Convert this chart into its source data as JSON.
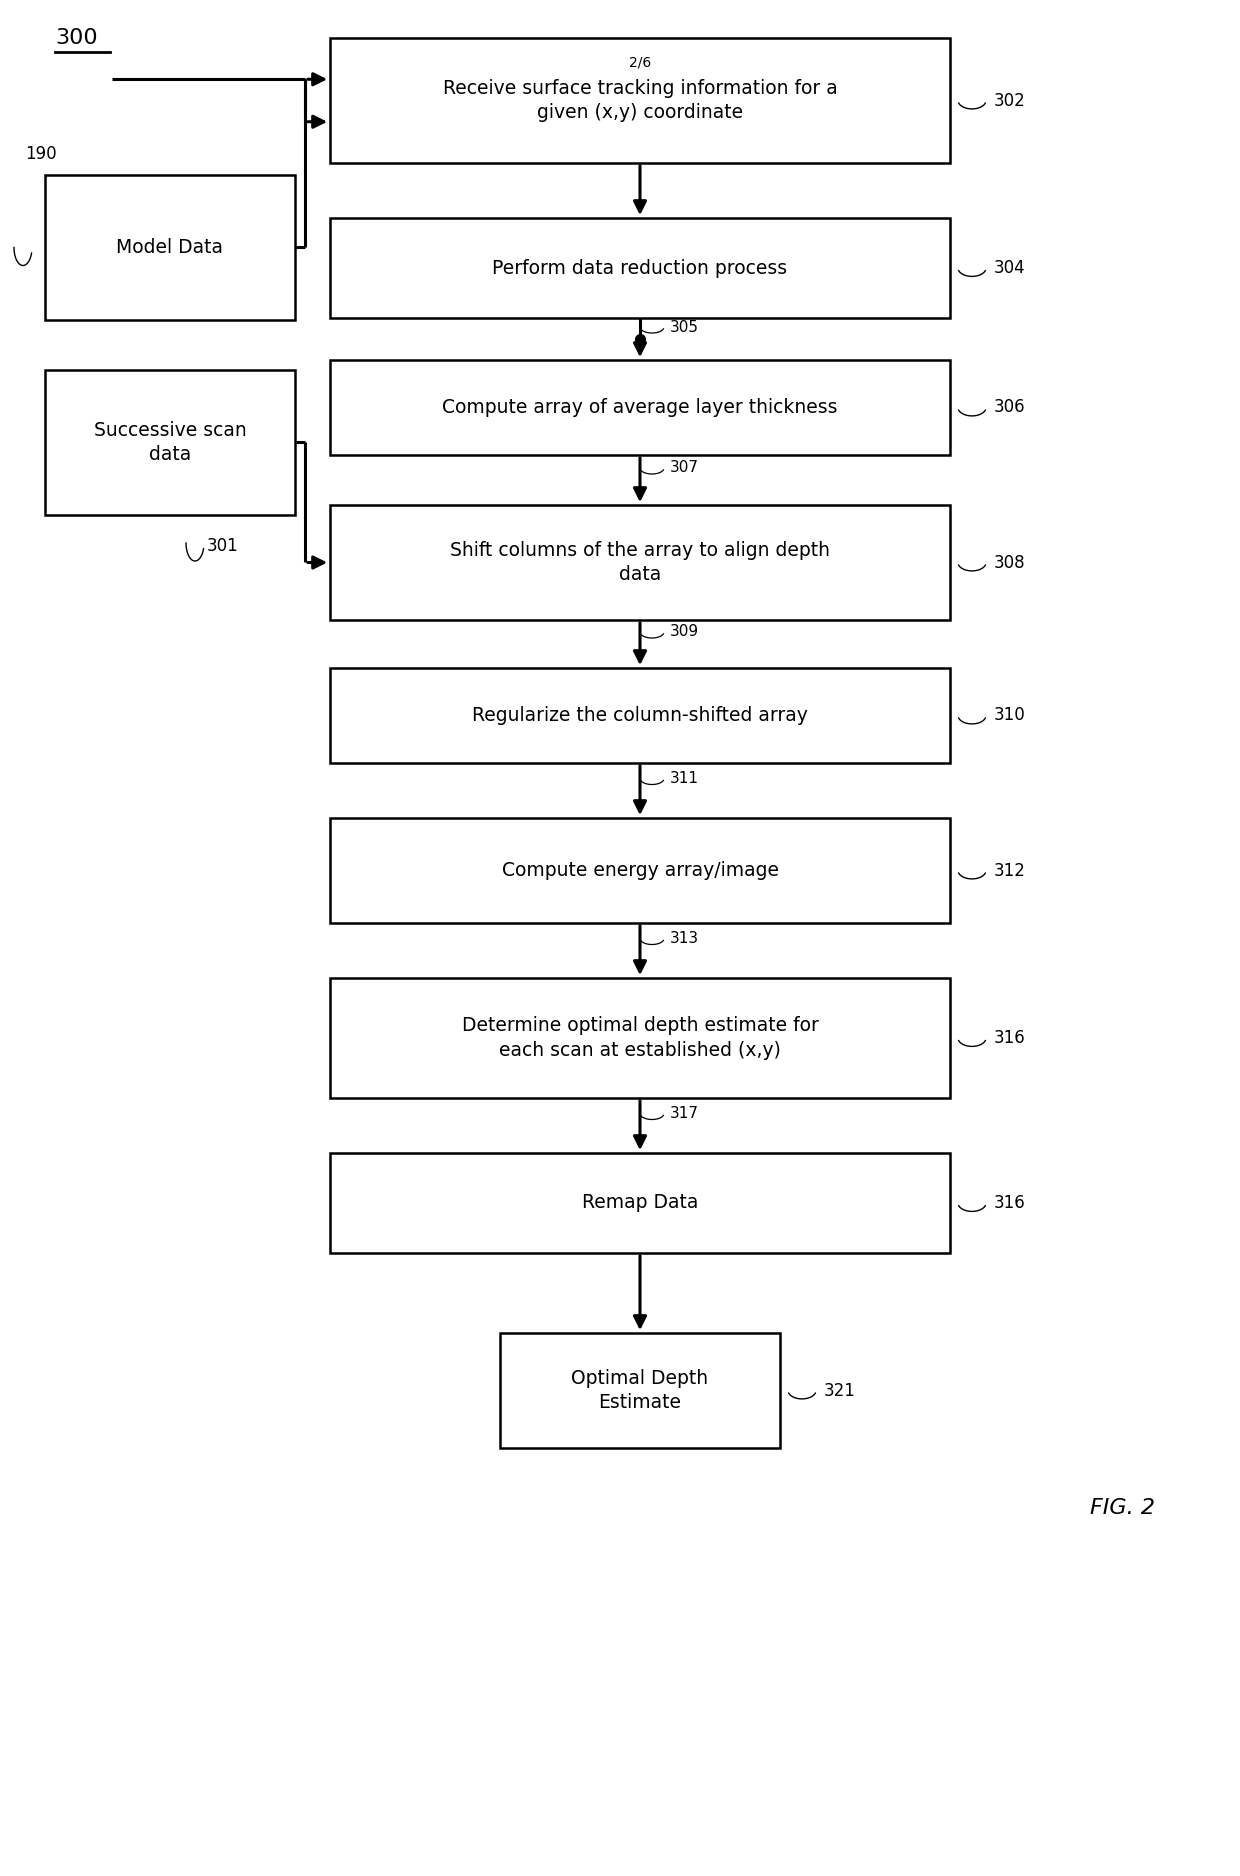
{
  "fig_width": 12.4,
  "fig_height": 18.76,
  "bg_color": "#ffffff",
  "box_color": "#ffffff",
  "box_edge_color": "#000000",
  "text_color": "#000000",
  "arrow_color": "#000000",
  "label_300": "300",
  "label_190": "190",
  "label_301": "301",
  "fig_label": "FIG. 2",
  "page_label": "2/6",
  "boxes": {
    "302": {
      "text": "Receive surface tracking information for a\ngiven (x,y) coordinate",
      "ref": "302"
    },
    "304": {
      "text": "Perform data reduction process",
      "ref": "304"
    },
    "306": {
      "text": "Compute array of average layer thickness",
      "ref": "306"
    },
    "308": {
      "text": "Shift columns of the array to align depth\ndata",
      "ref": "308"
    },
    "310": {
      "text": "Regularize the column-shifted array",
      "ref": "310"
    },
    "312": {
      "text": "Compute energy array/image",
      "ref": "312"
    },
    "316a": {
      "text": "Determine optimal depth estimate for\neach scan at established (x,y)",
      "ref": "316"
    },
    "316b": {
      "text": "Remap Data",
      "ref": "316"
    },
    "321": {
      "text": "Optimal Depth\nEstimate",
      "ref": "321"
    }
  },
  "side_boxes": {
    "model": {
      "text": "Model Data"
    },
    "scan": {
      "text": "Successive scan\ndata"
    }
  },
  "connector_labels": {
    "305": "305",
    "307": "307",
    "309": "309",
    "311": "311",
    "313": "313",
    "317": "317"
  }
}
